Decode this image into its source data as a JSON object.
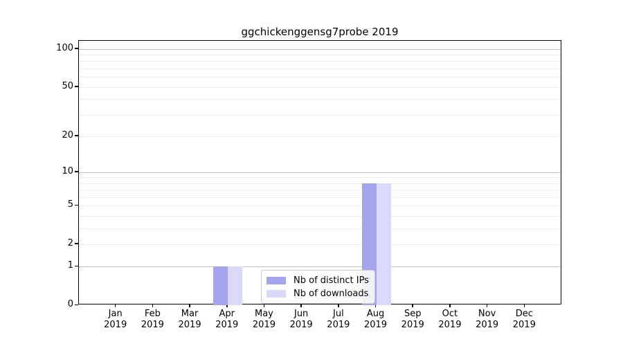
{
  "chart_data": {
    "type": "bar",
    "title": "ggchickenggensg7probe 2019",
    "categories": [
      "Jan",
      "Feb",
      "Mar",
      "Apr",
      "May",
      "Jun",
      "Jul",
      "Aug",
      "Sep",
      "Oct",
      "Nov",
      "Dec"
    ],
    "xtick_second_line": "2019",
    "series": [
      {
        "name": "Nb of distinct IPs",
        "color": "#a5a5ee",
        "values": [
          0,
          0,
          0,
          1,
          0,
          0,
          0,
          8,
          0,
          0,
          0,
          0
        ]
      },
      {
        "name": "Nb of downloads",
        "color": "#dadaf8",
        "values": [
          0,
          0,
          0,
          1,
          0,
          0,
          0,
          8,
          0,
          0,
          0,
          0
        ]
      }
    ],
    "xlabel": "",
    "ylabel": "",
    "yscale": "log1p",
    "ylim": [
      0,
      116
    ],
    "yticks": [
      0,
      1,
      2,
      5,
      10,
      20,
      50,
      100
    ],
    "grid": {
      "orientation": "horizontal",
      "major_values": [
        1,
        10,
        100
      ],
      "minor_values": [
        2,
        3,
        4,
        5,
        6,
        7,
        8,
        9,
        20,
        30,
        40,
        50,
        60,
        70,
        80,
        90
      ],
      "major_color": "#c2c2c2",
      "minor_color": "#ededed"
    },
    "legend": {
      "position": "lower center",
      "labels": [
        "Nb of distinct IPs",
        "Nb of downloads"
      ]
    }
  }
}
